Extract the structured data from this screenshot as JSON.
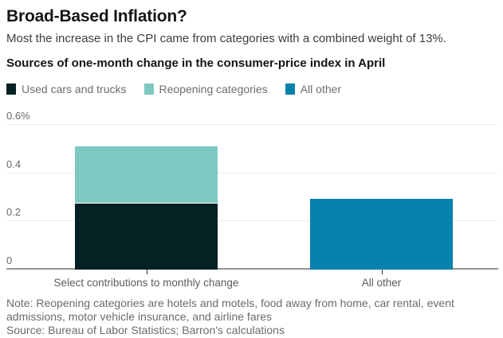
{
  "header": {
    "title": "Broad-Based Inflation?",
    "subtitle": "Most the increase in the CPI came from categories with a combined weight of 13%.",
    "chart_label": "Sources of one-month change in the consumer-price index in April"
  },
  "chart_data": {
    "type": "bar",
    "stacked": true,
    "title": "Sources of one-month change in the consumer-price index in April",
    "categories": [
      "Select contributions to monthly change",
      "All other"
    ],
    "series": [
      {
        "name": "Used cars and trucks",
        "color": "#052123",
        "values": [
          0.275,
          0
        ]
      },
      {
        "name": "Reopening categories",
        "color": "#7dc8c1",
        "values": [
          0.235,
          0
        ]
      },
      {
        "name": "All other",
        "color": "#0682ad",
        "values": [
          0,
          0.295
        ]
      }
    ],
    "yticks": [
      {
        "label": "0.6%",
        "value": 0.6
      },
      {
        "label": "0.4",
        "value": 0.4
      },
      {
        "label": "0.2",
        "value": 0.2
      },
      {
        "label": "0",
        "value": 0
      }
    ],
    "ylim": [
      0,
      0.66
    ],
    "xlabel": "",
    "ylabel": "",
    "grid": "horizontal",
    "legend_position": "top"
  },
  "notes": {
    "note": "Note: Reopening categories are hotels and motels, food away from home, car rental, event admissions, motor vehicle insurance, and airline fares",
    "source": "Source: Bureau of Labor Statistics; Barron's calculations"
  },
  "colors": {
    "gridline": "#ebebeb",
    "baseline": "#949494",
    "separator": "#ffffff"
  }
}
